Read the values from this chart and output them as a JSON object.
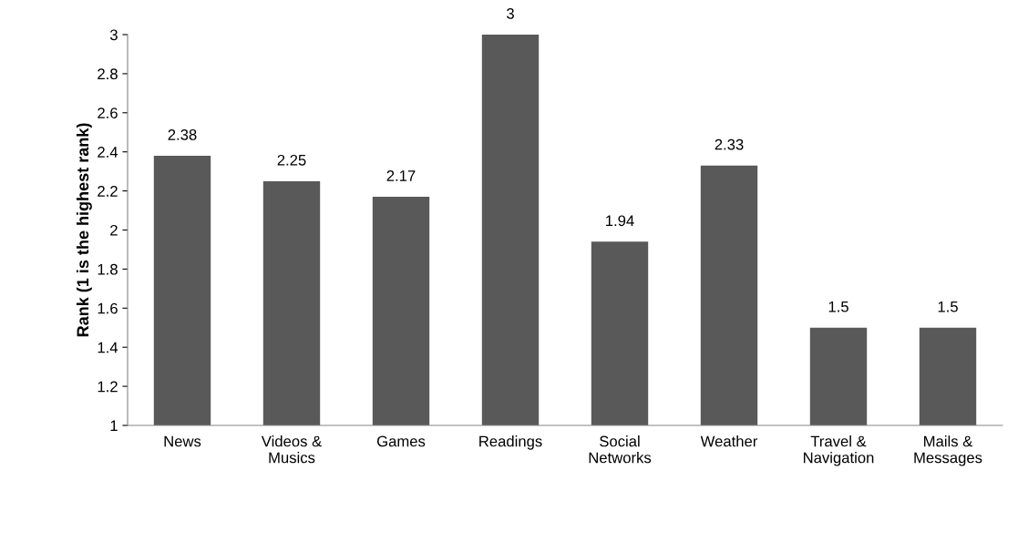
{
  "chart_data": {
    "type": "bar",
    "ylabel": "Rank (1 is the highest rank)",
    "categories": [
      "News",
      "Videos &\nMusics",
      "Games",
      "Readings",
      "Social\nNetworks",
      "Weather",
      "Travel &\nNavigation",
      "Mails &\nMessages"
    ],
    "values": [
      2.38,
      2.25,
      2.17,
      3,
      1.94,
      2.33,
      1.5,
      1.5
    ],
    "color": "#595959",
    "ylim": [
      1,
      3
    ],
    "yticks": [
      1,
      1.2,
      1.4,
      1.6,
      1.8,
      2,
      2.2,
      2.4,
      2.6,
      2.8,
      3
    ],
    "data_labels": true,
    "grid": false,
    "legend": false
  }
}
